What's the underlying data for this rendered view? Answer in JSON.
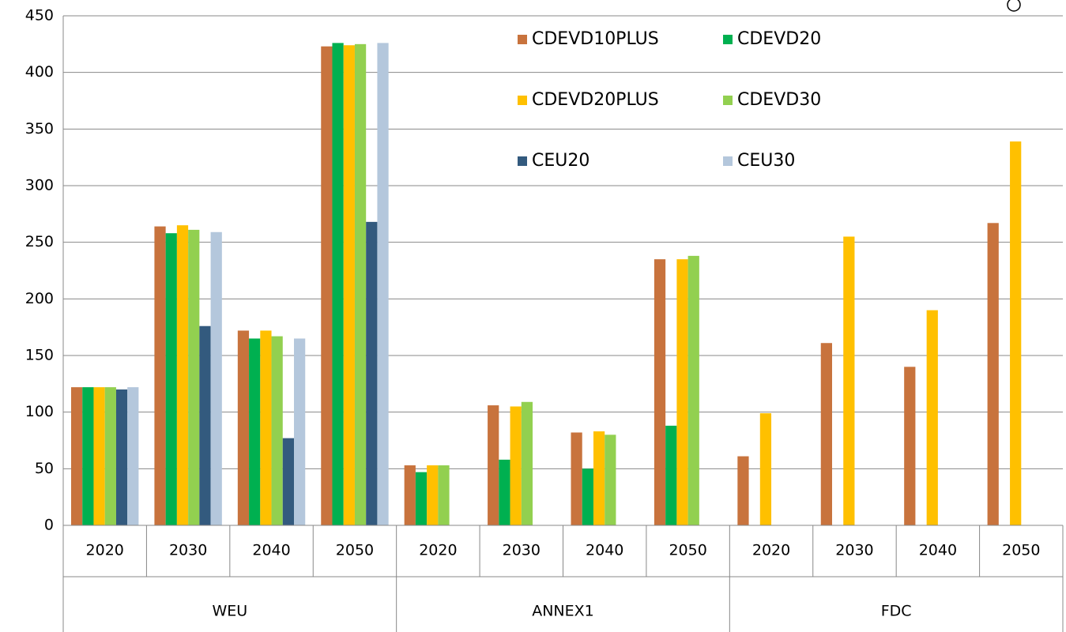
{
  "chart_data": {
    "type": "bar",
    "categories": [
      "2020",
      "2030",
      "2040",
      "2050",
      "2020",
      "2030",
      "2040",
      "2050",
      "2020",
      "2030",
      "2040",
      "2050"
    ],
    "category_groups": [
      "WEU",
      "ANNEX1",
      "FDC"
    ],
    "series": [
      {
        "name": "CDEVD10PLUS",
        "color": "#c8733d",
        "values": [
          122,
          264,
          172,
          423,
          53,
          106,
          82,
          235,
          61,
          161,
          140,
          267
        ]
      },
      {
        "name": "CDEVD20",
        "color": "#00b050",
        "values": [
          122,
          258,
          165,
          426,
          47,
          58,
          50,
          88,
          null,
          null,
          null,
          null
        ]
      },
      {
        "name": "CDEVD20PLUS",
        "color": "#ffc000",
        "values": [
          122,
          265,
          172,
          424,
          53,
          105,
          83,
          235,
          99,
          255,
          190,
          339
        ]
      },
      {
        "name": "CDEVD30",
        "color": "#92d050",
        "values": [
          122,
          261,
          167,
          425,
          53,
          109,
          80,
          238,
          null,
          null,
          null,
          null
        ]
      },
      {
        "name": "CEU20",
        "color": "#335a7e",
        "values": [
          120,
          176,
          77,
          268,
          null,
          null,
          null,
          null,
          null,
          null,
          null,
          null
        ]
      },
      {
        "name": "CEU30",
        "color": "#b4c7dc",
        "values": [
          122,
          259,
          165,
          426,
          null,
          null,
          null,
          null,
          null,
          null,
          null,
          null
        ]
      }
    ],
    "ylim": [
      0,
      450
    ],
    "yticks": [
      0,
      50,
      100,
      150,
      200,
      250,
      300,
      350,
      400,
      450
    ],
    "grid": true
  }
}
